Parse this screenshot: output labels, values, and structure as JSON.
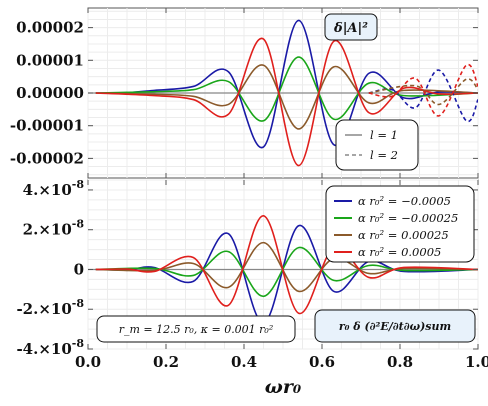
{
  "chart_data": [
    {
      "type": "line",
      "xlabel": "ωr₀",
      "ylabel": "",
      "xlim": [
        0.0,
        1.0
      ],
      "ylim": [
        -2.6e-05,
        2.6e-05
      ],
      "x_ticks": [
        "0.0",
        "0.2",
        "0.4",
        "0.6",
        "0.8",
        "1.0"
      ],
      "y_ticks": [
        "0.00002",
        "0.00001",
        "0.00000",
        "-0.00001",
        "-0.00002"
      ],
      "y_tick_values": [
        2e-05,
        1e-05,
        0,
        -1e-05,
        -2e-05
      ],
      "grid": true,
      "annotation": "δ|A|²",
      "legend": [
        {
          "name": "l = 1",
          "style": "solid",
          "color": "#a6a6a6"
        },
        {
          "name": "l = 2",
          "style": "dashed",
          "color": "#a6a6a6"
        }
      ],
      "series": [
        {
          "alpha": "-0.0005",
          "l": 1,
          "color": "#1a1aa6",
          "points": [
            [
              0.02,
              0
            ],
            [
              0.1,
              1e-07
            ],
            [
              0.17,
              8e-07
            ],
            [
              0.27,
              2e-06
            ],
            [
              0.36,
              6.5e-06
            ],
            [
              0.45,
              -1.65e-05
            ],
            [
              0.54,
              2.22e-05
            ],
            [
              0.63,
              -1.58e-05
            ],
            [
              0.72,
              6e-06
            ],
            [
              0.81,
              -1.5e-06
            ],
            [
              0.9,
              3e-07
            ],
            [
              1.0,
              0
            ]
          ]
        },
        {
          "alpha": "-0.00025",
          "l": 1,
          "color": "#1aa61a",
          "points": [
            [
              0.02,
              0
            ],
            [
              0.17,
              4e-07
            ],
            [
              0.27,
              1e-06
            ],
            [
              0.36,
              3.5e-06
            ],
            [
              0.45,
              -8.5e-06
            ],
            [
              0.54,
              1.1e-05
            ],
            [
              0.63,
              -8e-06
            ],
            [
              0.72,
              3e-06
            ],
            [
              0.81,
              -8e-07
            ],
            [
              1.0,
              0
            ]
          ]
        },
        {
          "alpha": "0.00025",
          "l": 1,
          "color": "#8b5a2b",
          "points": [
            [
              0.02,
              0
            ],
            [
              0.17,
              -4e-07
            ],
            [
              0.27,
              -1e-06
            ],
            [
              0.36,
              -3.5e-06
            ],
            [
              0.45,
              8.5e-06
            ],
            [
              0.54,
              -1.1e-05
            ],
            [
              0.63,
              8e-06
            ],
            [
              0.72,
              -3e-06
            ],
            [
              0.81,
              8e-07
            ],
            [
              1.0,
              0
            ]
          ]
        },
        {
          "alpha": "0.0005",
          "l": 1,
          "color": "#e0201d",
          "points": [
            [
              0.02,
              0
            ],
            [
              0.17,
              -8e-07
            ],
            [
              0.27,
              -2e-06
            ],
            [
              0.36,
              -6.5e-06
            ],
            [
              0.45,
              1.65e-05
            ],
            [
              0.54,
              -2.22e-05
            ],
            [
              0.63,
              1.58e-05
            ],
            [
              0.72,
              -6e-06
            ],
            [
              0.81,
              1.5e-06
            ],
            [
              0.9,
              -3e-07
            ],
            [
              1.0,
              0
            ]
          ]
        },
        {
          "alpha": "-0.0005",
          "l": 2,
          "color": "#1a1aa6",
          "points": [
            [
              0.72,
              0
            ],
            [
              0.78,
              1e-06
            ],
            [
              0.84,
              -4.5e-06
            ],
            [
              0.9,
              7e-06
            ],
            [
              0.97,
              -8.5e-06
            ],
            [
              1.0,
              -2e-06
            ]
          ]
        },
        {
          "alpha": "0.00025",
          "l": 2,
          "color": "#8b5a2b",
          "points": [
            [
              0.72,
              0
            ],
            [
              0.84,
              2.2e-06
            ],
            [
              0.9,
              -3.5e-06
            ],
            [
              0.97,
              4.2e-06
            ],
            [
              1.0,
              1e-06
            ]
          ]
        },
        {
          "alpha": "0.0005",
          "l": 2,
          "color": "#e0201d",
          "points": [
            [
              0.72,
              0
            ],
            [
              0.78,
              -1e-06
            ],
            [
              0.84,
              4.5e-06
            ],
            [
              0.9,
              -7e-06
            ],
            [
              0.97,
              8.5e-06
            ],
            [
              1.0,
              2e-06
            ]
          ]
        }
      ]
    },
    {
      "type": "line",
      "xlabel": "ωr₀",
      "ylabel": "",
      "xlim": [
        0.0,
        1.0
      ],
      "ylim": [
        -4e-08,
        4.5e-08
      ],
      "x_ticks": [
        "0.0",
        "0.2",
        "0.4",
        "0.6",
        "0.8",
        "1.0"
      ],
      "y_tick_labels": [
        {
          "mant": "4.",
          "exp": "-8"
        },
        {
          "mant": "2.",
          "exp": "-8"
        },
        {
          "mant": "0",
          "exp": ""
        },
        {
          "mant": "-2.",
          "exp": "-8"
        },
        {
          "mant": "-4.",
          "exp": "-8"
        }
      ],
      "y_tick_values": [
        4e-08,
        2e-08,
        0,
        -2e-08,
        -4e-08
      ],
      "grid": true,
      "annotation": "r₀ δ (∂²E/∂t∂ω)sum",
      "params_box": "r_m = 12.5 r₀,  κ = 0.001 r₀²",
      "legend": [
        {
          "name": "α r₀² = −0.0005",
          "color": "#1a1aa6"
        },
        {
          "name": "α r₀² = −0.00025",
          "color": "#1aa61a"
        },
        {
          "name": "α r₀² = 0.00025",
          "color": "#8b5a2b"
        },
        {
          "name": "α r₀² = 0.0005",
          "color": "#e0201d"
        }
      ],
      "series": [
        {
          "name": "α r₀² = −0.0005",
          "color": "#1a1aa6",
          "points": [
            [
              0.02,
              0
            ],
            [
              0.1,
              -2e-10
            ],
            [
              0.17,
              1e-09
            ],
            [
              0.27,
              -6e-09
            ],
            [
              0.36,
              1.8e-08
            ],
            [
              0.45,
              -2.7e-08
            ],
            [
              0.54,
              2.2e-08
            ],
            [
              0.63,
              -1.1e-08
            ],
            [
              0.72,
              4e-09
            ],
            [
              0.81,
              -1e-09
            ],
            [
              1.0,
              0
            ]
          ]
        },
        {
          "name": "α r₀² = −0.00025",
          "color": "#1aa61a",
          "points": [
            [
              0.02,
              0
            ],
            [
              0.17,
              5e-10
            ],
            [
              0.27,
              -3e-09
            ],
            [
              0.36,
              9e-09
            ],
            [
              0.45,
              -1.35e-08
            ],
            [
              0.54,
              1.1e-08
            ],
            [
              0.63,
              -5.5e-09
            ],
            [
              0.72,
              2e-09
            ],
            [
              0.81,
              -5e-10
            ],
            [
              1.0,
              0
            ]
          ]
        },
        {
          "name": "α r₀² = 0.00025",
          "color": "#8b5a2b",
          "points": [
            [
              0.02,
              0
            ],
            [
              0.17,
              -5e-10
            ],
            [
              0.27,
              3e-09
            ],
            [
              0.36,
              -9e-09
            ],
            [
              0.45,
              1.35e-08
            ],
            [
              0.54,
              -1.1e-08
            ],
            [
              0.63,
              5.5e-09
            ],
            [
              0.72,
              -2e-09
            ],
            [
              0.81,
              5e-10
            ],
            [
              1.0,
              0
            ]
          ]
        },
        {
          "name": "α r₀² = 0.0005",
          "color": "#e0201d",
          "points": [
            [
              0.02,
              0
            ],
            [
              0.1,
              2e-10
            ],
            [
              0.17,
              -1e-09
            ],
            [
              0.27,
              6e-09
            ],
            [
              0.36,
              -1.8e-08
            ],
            [
              0.45,
              2.7e-08
            ],
            [
              0.54,
              -2.2e-08
            ],
            [
              0.63,
              1.1e-08
            ],
            [
              0.72,
              -4e-09
            ],
            [
              0.81,
              1e-09
            ],
            [
              1.0,
              0
            ]
          ]
        }
      ]
    }
  ]
}
